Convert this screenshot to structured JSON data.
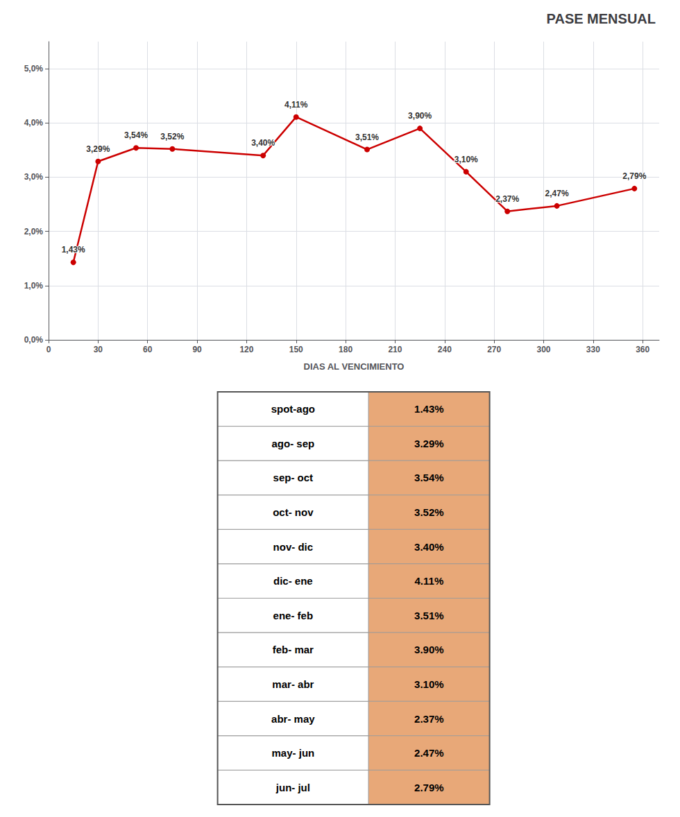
{
  "chart_data": [
    {
      "type": "line",
      "title": "PASE MENSUAL",
      "xlabel": "DIAS AL VENCIMIENTO",
      "x": [
        15,
        30,
        53,
        75,
        130,
        150,
        193,
        225,
        253,
        278,
        308,
        355
      ],
      "values": [
        1.43,
        3.29,
        3.54,
        3.52,
        3.4,
        4.11,
        3.51,
        3.9,
        3.1,
        2.37,
        2.47,
        2.79
      ],
      "value_labels": [
        "1,43%",
        "3,29%",
        "3,54%",
        "3,52%",
        "3,40%",
        "4,11%",
        "3,51%",
        "3,90%",
        "3,10%",
        "2,37%",
        "2,47%",
        "2,79%"
      ],
      "data_labels": true,
      "color": "#cc0000",
      "marker": "circle",
      "xlim": [
        0,
        370
      ],
      "xticks": [
        0,
        30,
        60,
        90,
        120,
        150,
        180,
        210,
        240,
        270,
        300,
        330,
        360
      ],
      "ylim": [
        0.0,
        5.5
      ],
      "yticks": [
        {
          "value": 0.0,
          "label": "0,0%"
        },
        {
          "value": 1.0,
          "label": "1,0%"
        },
        {
          "value": 2.0,
          "label": "2,0%"
        },
        {
          "value": 3.0,
          "label": "3,0%"
        },
        {
          "value": 4.0,
          "label": "4,0%"
        },
        {
          "value": 5.0,
          "label": "5,0%"
        }
      ],
      "grid": true
    },
    {
      "type": "table",
      "categories": [
        "spot-ago",
        "ago- sep",
        "sep- oct",
        "oct- nov",
        "nov- dic",
        "dic- ene",
        "ene- feb",
        "feb- mar",
        "mar- abr",
        "abr- may",
        "may- jun",
        "jun- jul"
      ],
      "values": [
        1.43,
        3.29,
        3.54,
        3.52,
        3.4,
        4.11,
        3.51,
        3.9,
        3.1,
        2.37,
        2.47,
        2.79
      ],
      "value_labels": [
        "1.43%",
        "3.29%",
        "3.54%",
        "3.52%",
        "3.40%",
        "4.11%",
        "3.51%",
        "3.90%",
        "3.10%",
        "2.37%",
        "2.47%",
        "2.79%"
      ],
      "color": "#e8a878"
    }
  ]
}
